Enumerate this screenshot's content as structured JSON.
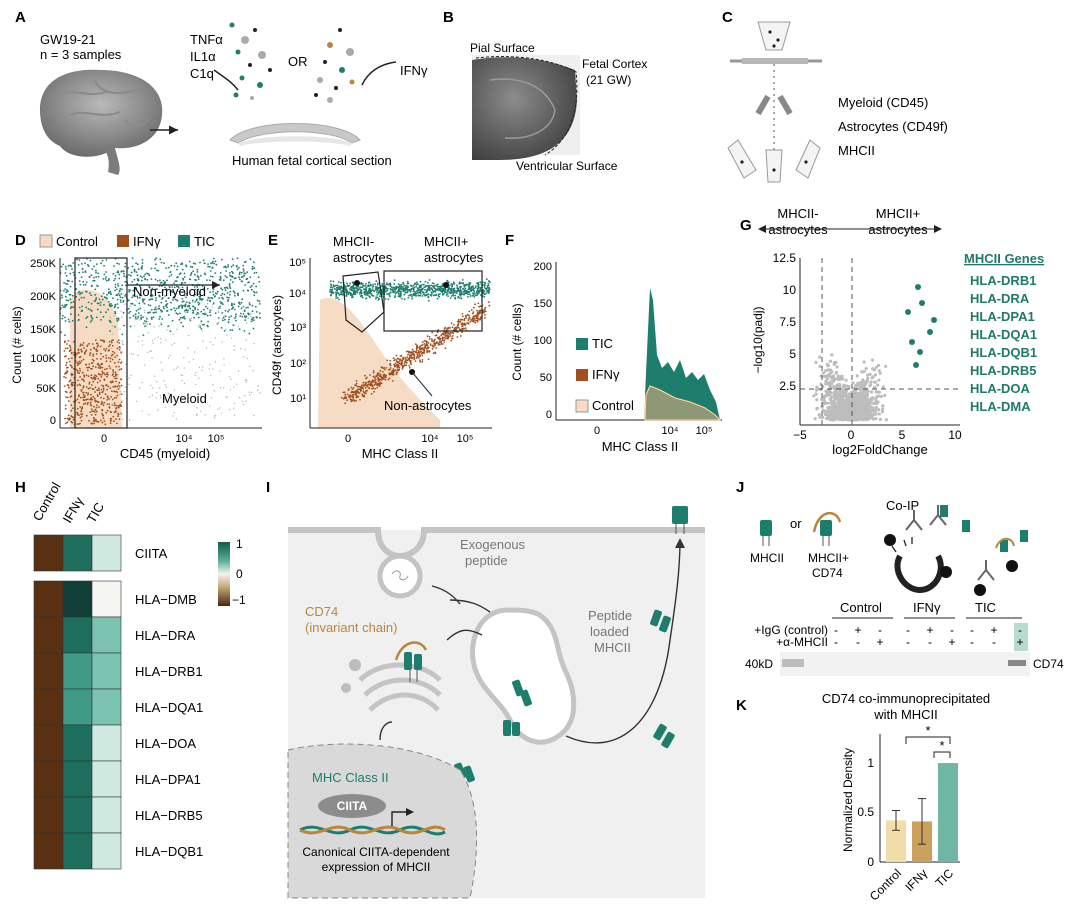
{
  "panels": {
    "A": {
      "label": "A",
      "gw": "GW19-21",
      "n": "n = 3 samples",
      "stim1": "TNFα",
      "stim2": "IL1α",
      "stim3": "C1q",
      "or": "OR",
      "stim4": "IFNγ",
      "caption": "Human fetal cortical section"
    },
    "B": {
      "label": "B",
      "pial": "Pial Surface",
      "fetal1": "Fetal Cortex",
      "fetal2": "(21 GW)",
      "ventricular": "Ventricular Surface"
    },
    "C": {
      "label": "C",
      "m1": "Myeloid (CD45)",
      "m2": "Astrocytes (CD49f)",
      "m3": "MHCII"
    },
    "D": {
      "label": "D",
      "legend": [
        "Control",
        "IFNγ",
        "TIC"
      ],
      "ylabel": "Count (# cells)",
      "xlabel": "CD45 (myeloid)",
      "yticks": [
        "250K",
        "200K",
        "150K",
        "100K",
        "50K",
        "0"
      ],
      "xticks": [
        "0",
        "10⁴",
        "10⁵"
      ],
      "gate_nonmyeloid": "Non-myeloid",
      "gate_myeloid": "Myeloid"
    },
    "E": {
      "label": "E",
      "ylabel": "CD49f (astrocytes)",
      "xlabel": "MHC Class II",
      "yticks": [
        "10⁵",
        "10⁴",
        "10³",
        "10²",
        "10¹"
      ],
      "xticks": [
        "0",
        "10⁴",
        "10⁵"
      ],
      "gate_neg1": "MHCII-",
      "gate_neg2": "astrocytes",
      "gate_pos1": "MHCII+",
      "gate_pos2": "astrocytes",
      "nonastro": "Non-astrocytes"
    },
    "F": {
      "label": "F",
      "ylabel": "Count (# cells)",
      "xlabel": "MHC Class II",
      "yticks": [
        "200",
        "150",
        "100",
        "50",
        "0"
      ],
      "xticks": [
        "0",
        "10⁴",
        "10⁵"
      ],
      "legend": [
        "TIC",
        "IFNγ",
        "Control"
      ]
    },
    "G": {
      "label": "G",
      "left1": "MHCII-",
      "left2": "astrocytes",
      "right1": "MHCII+",
      "right2": "astrocytes",
      "ylabel": "−log10(padj)",
      "xlabel": "log2FoldChange",
      "yticks": [
        "12.5",
        "10",
        "7.5",
        "5",
        "2.5"
      ],
      "xticks": [
        "−5",
        "0",
        "5",
        "10"
      ],
      "genes_title": "MHCII Genes",
      "genes": [
        "HLA-DRB1",
        "HLA-DRA",
        "HLA-DPA1",
        "HLA-DQA1",
        "HLA-DQB1",
        "HLA-DRB5",
        "HLA-DOA",
        "HLA-DMA"
      ]
    },
    "H": {
      "label": "H",
      "cols": [
        "Control",
        "IFNγ",
        "TIC"
      ],
      "rows": [
        "CIITA",
        "HLA−DMB",
        "HLA−DRA",
        "HLA−DRB1",
        "HLA−DQA1",
        "HLA−DOA",
        "HLA−DPA1",
        "HLA−DRB5",
        "HLA−DQB1"
      ],
      "scale": [
        "1",
        "0",
        "−1"
      ]
    },
    "I": {
      "label": "I",
      "exo1": "Exogenous",
      "exo2": "peptide",
      "cd74a": "CD74",
      "cd74b": "(invariant chain)",
      "loaded1": "Peptide",
      "loaded2": "loaded",
      "loaded3": "MHCII",
      "mhc": "MHC Class II",
      "ciita": "CIITA",
      "canon1": "Canonical CIITA-dependent",
      "canon2": "expression of MHCII"
    },
    "J": {
      "label": "J",
      "mhcii": "MHCII",
      "or": "or",
      "combo1": "MHCII+",
      "combo2": "CD74",
      "coip": "Co-IP",
      "groups": [
        "Control",
        "IFNγ",
        "TIC"
      ],
      "row1": "+IgG (control)",
      "row2": "+α-MHCII",
      "kd": "40kD",
      "band": "CD74"
    },
    "K": {
      "label": "K",
      "title1": "CD74 co-immunoprecipitated",
      "title2": "with MHCII",
      "ylabel": "Normalized Density",
      "yticks": [
        "1",
        "0.5",
        "0"
      ],
      "star": "*"
    }
  },
  "chart_data": [
    {
      "type": "bar",
      "panel": "K",
      "title": "CD74 co-immunoprecipitated with MHCII",
      "ylabel": "Normalized Density",
      "categories": [
        "Control",
        "IFNγ",
        "TIC"
      ],
      "values": [
        0.42,
        0.41,
        1.0
      ],
      "errors": [
        0.1,
        0.23,
        0
      ],
      "ylim": [
        0,
        1.2
      ],
      "colors": [
        "#f2dca8",
        "#caa05a",
        "#6fb6a4"
      ]
    },
    {
      "type": "heatmap",
      "panel": "H",
      "columns": [
        "Control",
        "IFNγ",
        "TIC"
      ],
      "rows": [
        "CIITA",
        "HLA−DMB",
        "HLA−DRA",
        "HLA−DRB1",
        "HLA−DQA1",
        "HLA−DOA",
        "HLA−DPA1",
        "HLA−DRB5",
        "HLA−DQB1"
      ],
      "values": [
        [
          -1,
          1,
          0.2
        ],
        [
          -1,
          1.3,
          0
        ],
        [
          -1,
          1,
          0.5
        ],
        [
          -1,
          0.7,
          0.6
        ],
        [
          -1,
          0.7,
          0.6
        ],
        [
          -1,
          1,
          0.2
        ],
        [
          -1,
          1,
          0.2
        ],
        [
          -1,
          1,
          0.2
        ],
        [
          -1,
          1,
          0.2
        ]
      ],
      "range": [
        -1,
        1
      ]
    }
  ],
  "colors": {
    "teal": "#1e7e6e",
    "brown": "#a14f1e",
    "control": "#f6dcc4",
    "gray": "#c8c8c8"
  }
}
